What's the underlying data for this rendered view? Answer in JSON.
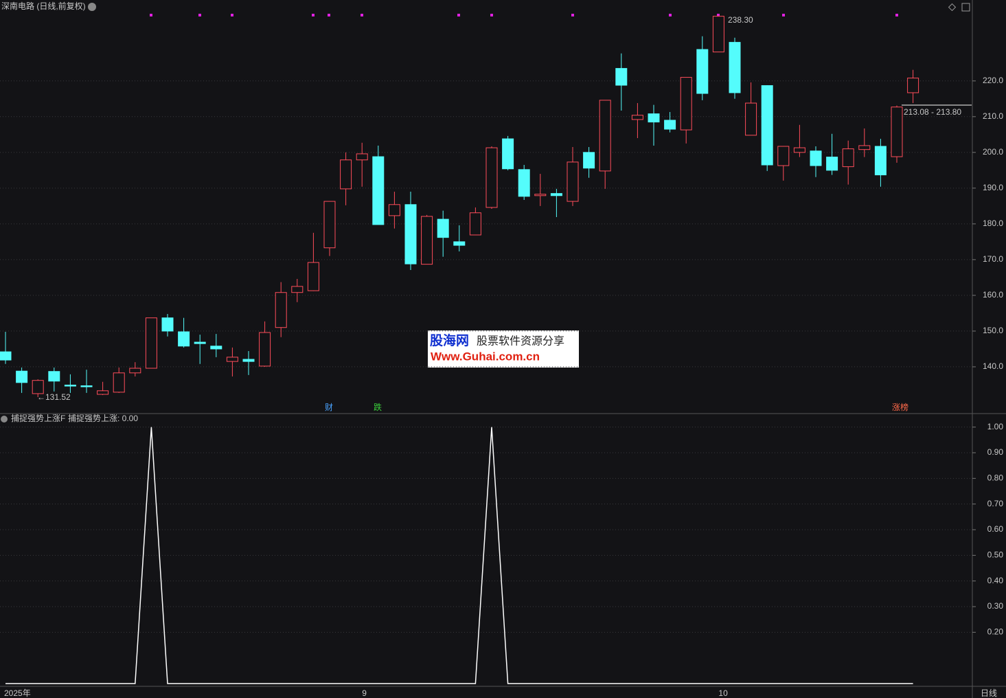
{
  "title": "深南电路 (日线,前复权)",
  "period_label": "日线",
  "event_tags": [
    "财",
    "跌",
    "涨榜"
  ],
  "watermark": {
    "site": "股海网",
    "slogan": "股票软件资源分享",
    "url": "Www.Guhai.com.cn"
  },
  "chart_data": [
    {
      "type": "candlestick",
      "up_color": "#ff4d5a",
      "down_color": "#54fcfc",
      "ylim": [
        127.3,
        238.8
      ],
      "yticks": [
        {
          "value": 140,
          "label": "140.0"
        },
        {
          "value": 150,
          "label": "150.0"
        },
        {
          "value": 160,
          "label": "160.0"
        },
        {
          "value": 170,
          "label": "170.0"
        },
        {
          "value": 180,
          "label": "180.0"
        },
        {
          "value": 190,
          "label": "190.0"
        },
        {
          "value": 200,
          "label": "200.0"
        },
        {
          "value": 210,
          "label": "210.0"
        },
        {
          "value": 220,
          "label": "220.0"
        }
      ],
      "grid": true,
      "annotations": [
        "←131.52",
        "238.30"
      ],
      "price_label": "213.08 - 213.80",
      "open": [
        144.2,
        138.8,
        132.5,
        138.7,
        134.9,
        134.7,
        132.3,
        132.9,
        138.3,
        139.6,
        153.7,
        149.8,
        146.9,
        145.8,
        141.5,
        142.1,
        140.2,
        151.0,
        160.8,
        161.3,
        173.3,
        189.8,
        197.9,
        198.8,
        182.3,
        185.4,
        168.7,
        181.3,
        175.0,
        176.9,
        184.6,
        203.8,
        195.2,
        187.9,
        188.5,
        186.3,
        200.0,
        194.8,
        223.5,
        209.2,
        210.8,
        209.0,
        206.3,
        228.8,
        228.1,
        230.8,
        204.8,
        218.7,
        196.3,
        200.0,
        200.4,
        198.7,
        196.0,
        200.8,
        201.7,
        198.8,
        216.7
      ],
      "high": [
        149.8,
        139.8,
        136.5,
        139.8,
        137.9,
        139.2,
        135.8,
        139.8,
        141.3,
        153.7,
        154.8,
        153.7,
        149.0,
        149.2,
        145.4,
        144.4,
        152.7,
        163.7,
        164.6,
        177.5,
        186.3,
        200.0,
        202.7,
        201.9,
        189.0,
        189.0,
        182.5,
        183.7,
        179.6,
        184.6,
        201.7,
        204.6,
        196.5,
        194.0,
        189.8,
        201.5,
        201.5,
        214.6,
        227.7,
        213.8,
        213.3,
        211.3,
        221.0,
        232.5,
        238.3,
        232.1,
        219.6,
        218.8,
        201.7,
        207.7,
        201.7,
        205.2,
        203.3,
        206.7,
        203.8,
        213.1,
        223.1
      ],
      "low": [
        140.8,
        132.7,
        131.52,
        133.1,
        132.7,
        132.7,
        132.1,
        132.7,
        137.3,
        139.6,
        148.5,
        145.4,
        140.8,
        142.7,
        137.3,
        137.7,
        140.0,
        148.3,
        158.1,
        161.2,
        171.0,
        185.2,
        190.4,
        179.8,
        178.7,
        167.1,
        168.7,
        170.8,
        172.3,
        176.9,
        184.2,
        195.0,
        186.7,
        185.0,
        181.9,
        185.0,
        192.9,
        189.8,
        211.7,
        204.0,
        201.9,
        205.6,
        202.5,
        214.6,
        228.1,
        215.0,
        204.8,
        194.8,
        192.1,
        198.7,
        193.1,
        193.7,
        191.0,
        198.7,
        190.4,
        197.1,
        213.8
      ],
      "close": [
        141.9,
        135.6,
        136.2,
        136.0,
        134.6,
        134.5,
        133.3,
        138.3,
        139.6,
        153.7,
        150.0,
        145.8,
        146.5,
        145.0,
        142.7,
        141.5,
        149.6,
        160.8,
        162.5,
        169.2,
        186.3,
        197.9,
        199.6,
        179.8,
        185.4,
        168.8,
        182.1,
        176.2,
        174.0,
        183.1,
        201.3,
        195.4,
        187.7,
        188.3,
        187.9,
        197.3,
        195.6,
        214.6,
        218.8,
        210.4,
        208.5,
        206.5,
        221.0,
        216.5,
        238.1,
        216.7,
        213.8,
        196.5,
        201.7,
        201.3,
        196.3,
        195.0,
        201.0,
        201.9,
        193.7,
        212.7,
        220.8
      ]
    },
    {
      "type": "line",
      "title": "捕捉强势上涨F",
      "legend_text": "捕捉强势上涨: 0.00",
      "ylim": [
        0,
        1.05
      ],
      "yticks": [
        {
          "value": 0.2,
          "label": "0.20"
        },
        {
          "value": 0.3,
          "label": "0.30"
        },
        {
          "value": 0.4,
          "label": "0.40"
        },
        {
          "value": 0.5,
          "label": "0.50"
        },
        {
          "value": 0.6,
          "label": "0.60"
        },
        {
          "value": 0.7,
          "label": "0.70"
        },
        {
          "value": 0.8,
          "label": "0.80"
        },
        {
          "value": 0.9,
          "label": "0.90"
        },
        {
          "value": 1,
          "label": "1.00"
        }
      ],
      "grid": true,
      "categories": [
        "2025年",
        null,
        null,
        null,
        null,
        null,
        null,
        null,
        null,
        null,
        null,
        null,
        null,
        null,
        null,
        null,
        null,
        null,
        null,
        null,
        null,
        null,
        "9",
        null,
        null,
        null,
        null,
        null,
        null,
        null,
        null,
        null,
        null,
        null,
        null,
        null,
        null,
        null,
        null,
        null,
        null,
        null,
        null,
        null,
        "10",
        null,
        null,
        null,
        null,
        null,
        null,
        null,
        null,
        null,
        null,
        null,
        null
      ],
      "series": [
        {
          "color": "#ffffff",
          "values": [
            0,
            0,
            0,
            0,
            0,
            0,
            0,
            0,
            0,
            1,
            0,
            0,
            0,
            0,
            0,
            0,
            0,
            0,
            0,
            0,
            0,
            0,
            0,
            0,
            0,
            0,
            0,
            0,
            0,
            0,
            1,
            0,
            0,
            0,
            0,
            0,
            0,
            0,
            0,
            0,
            0,
            0,
            0,
            0,
            0,
            0,
            0,
            0,
            0,
            0,
            0,
            0,
            0,
            0,
            0,
            0,
            0
          ]
        }
      ]
    }
  ]
}
